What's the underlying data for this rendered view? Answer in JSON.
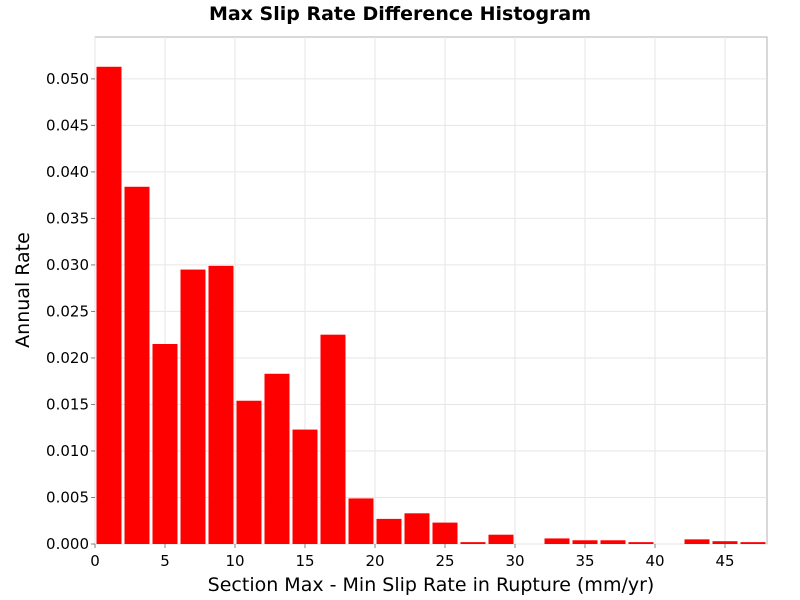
{
  "chart_data": {
    "type": "bar",
    "title": "Max Slip Rate Difference Histogram",
    "xlabel": "Section Max - Min Slip Rate in Rupture (mm/yr)",
    "ylabel": "Annual Rate",
    "xlim": [
      0,
      48
    ],
    "ylim": [
      0,
      0.0545
    ],
    "x_ticks": [
      "0",
      "5",
      "10",
      "15",
      "20",
      "25",
      "30",
      "35",
      "40",
      "45"
    ],
    "y_ticks": [
      "0.000",
      "0.005",
      "0.010",
      "0.015",
      "0.020",
      "0.025",
      "0.030",
      "0.035",
      "0.040",
      "0.045",
      "0.050"
    ],
    "grid": true,
    "legend": "none",
    "bin_width": 2,
    "bar_color": "#ff0000",
    "bins": [
      {
        "x_start": 0,
        "value": 0.0513
      },
      {
        "x_start": 2,
        "value": 0.0384
      },
      {
        "x_start": 4,
        "value": 0.0215
      },
      {
        "x_start": 6,
        "value": 0.0295
      },
      {
        "x_start": 8,
        "value": 0.0299
      },
      {
        "x_start": 10,
        "value": 0.0154
      },
      {
        "x_start": 12,
        "value": 0.0183
      },
      {
        "x_start": 14,
        "value": 0.0123
      },
      {
        "x_start": 16,
        "value": 0.0225
      },
      {
        "x_start": 18,
        "value": 0.0049
      },
      {
        "x_start": 20,
        "value": 0.0027
      },
      {
        "x_start": 22,
        "value": 0.0033
      },
      {
        "x_start": 24,
        "value": 0.0023
      },
      {
        "x_start": 26,
        "value": 0.0002
      },
      {
        "x_start": 28,
        "value": 0.001
      },
      {
        "x_start": 30,
        "value": 0.0
      },
      {
        "x_start": 32,
        "value": 0.0006
      },
      {
        "x_start": 34,
        "value": 0.0004
      },
      {
        "x_start": 36,
        "value": 0.0004
      },
      {
        "x_start": 38,
        "value": 0.0002
      },
      {
        "x_start": 40,
        "value": 0.0
      },
      {
        "x_start": 42,
        "value": 0.0005
      },
      {
        "x_start": 44,
        "value": 0.0003
      },
      {
        "x_start": 46,
        "value": 0.0002
      }
    ]
  }
}
